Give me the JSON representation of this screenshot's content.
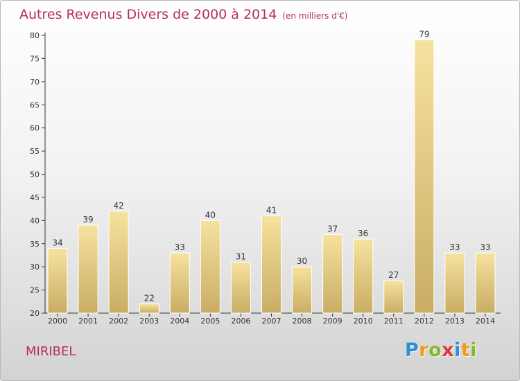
{
  "title": {
    "main": "Autres Revenus Divers de 2000 à 2014",
    "unit": "(en milliers d'€)"
  },
  "commune": "MIRIBEL",
  "logo": {
    "letters": [
      "P",
      "r",
      "o",
      "x",
      "i",
      "t",
      "i"
    ],
    "colors": [
      "#2c8fd6",
      "#f29a1a",
      "#86b82b",
      "#d93a3a",
      "#2c8fd6",
      "#f29a1a",
      "#86b82b"
    ]
  },
  "colors": {
    "title": "#b5304f",
    "bar_light": "#f6e29f",
    "bar_dark": "#c9ad64",
    "axis": "#333333"
  },
  "chart_data": {
    "type": "bar",
    "title": "Autres Revenus Divers de 2000 à 2014",
    "subtitle": "(en milliers d'€)",
    "categories": [
      "2000",
      "2001",
      "2002",
      "2003",
      "2004",
      "2005",
      "2006",
      "2007",
      "2008",
      "2009",
      "2010",
      "2011",
      "2012",
      "2013",
      "2014"
    ],
    "values": [
      34,
      39,
      42,
      22,
      33,
      40,
      31,
      41,
      30,
      37,
      36,
      27,
      79,
      33,
      33
    ],
    "ylim": [
      20,
      80
    ],
    "yticks": [
      20,
      25,
      30,
      35,
      40,
      45,
      50,
      55,
      60,
      65,
      70,
      75,
      80
    ],
    "grid": false,
    "data_labels": true
  }
}
